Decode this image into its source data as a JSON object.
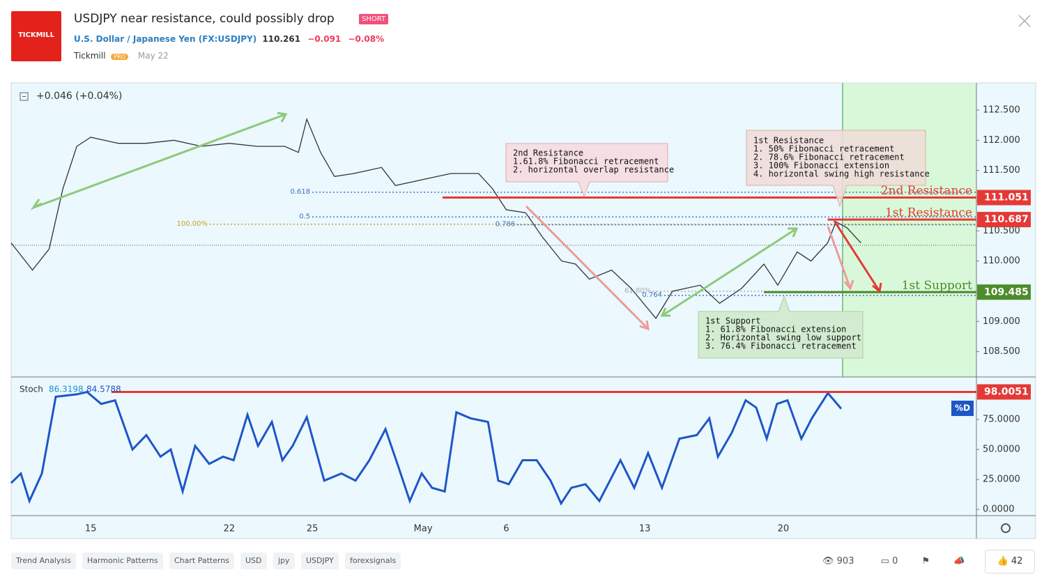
{
  "header": {
    "logo": "TICKMILL",
    "title": "USDJPY near resistance, could possibly drop",
    "badge": "SHORT",
    "symbol": "U.S. Dollar / Japanese Yen",
    "exchange": "(FX:USDJPY)",
    "price": 110.261,
    "change": "−0.091",
    "change_pct": "−0.08%",
    "author": "Tickmill",
    "author_badge": "PRO",
    "date": "May 22"
  },
  "chart_data": [
    {
      "type": "line",
      "legend_value": "+0.046 (+0.04%)",
      "color": "#333333",
      "x": [
        -2.87,
        -2.1,
        -1.5,
        -1,
        -0.5,
        0,
        1,
        2,
        3,
        4,
        5,
        6,
        7,
        7.5,
        7.8,
        8.3,
        8.8,
        9.5,
        10.5,
        11,
        12,
        13,
        14,
        14.5,
        15,
        15.7,
        16.3,
        17,
        17.5,
        18,
        18.8,
        19.5,
        20.4,
        21,
        22,
        22.7,
        23.5,
        24.3,
        24.8,
        25.5,
        26,
        26.6,
        26.9,
        27.3,
        27.8
      ],
      "series": [
        {
          "color": "#333333",
          "values": [
            110.3,
            109.85,
            110.2,
            111.2,
            111.9,
            112.05,
            111.95,
            111.95,
            112.0,
            111.9,
            111.95,
            111.9,
            111.9,
            111.8,
            112.35,
            111.8,
            111.4,
            111.45,
            111.55,
            111.25,
            111.35,
            111.45,
            111.45,
            111.2,
            110.85,
            110.8,
            110.4,
            110.0,
            109.95,
            109.7,
            109.85,
            109.55,
            109.05,
            109.5,
            109.6,
            109.3,
            109.55,
            109.95,
            109.6,
            110.15,
            110.0,
            110.3,
            110.65,
            110.55,
            110.3
          ]
        }
      ],
      "xlim": [
        -2.87,
        31.97
      ],
      "xticks": [
        {
          "value": 0,
          "label": "15"
        },
        {
          "value": 5,
          "label": "22"
        },
        {
          "value": 8,
          "label": "25"
        },
        {
          "value": 12,
          "label": "May"
        },
        {
          "value": 15,
          "label": "6"
        },
        {
          "value": 20,
          "label": "13"
        },
        {
          "value": 25,
          "label": "20"
        }
      ],
      "ylim": [
        108.08,
        112.95
      ],
      "yticks": [
        {
          "value": 108.5,
          "label": "108.500"
        },
        {
          "value": 109,
          "label": "109.000"
        },
        {
          "value": 109.5,
          "label": "109.500"
        },
        {
          "value": 110,
          "label": "110.000"
        },
        {
          "value": 110.5,
          "label": "110.500"
        },
        {
          "value": 111,
          "label": "111.000"
        },
        {
          "value": 111.5,
          "label": "111.500"
        },
        {
          "value": 112,
          "label": "112.000"
        },
        {
          "value": 112.5,
          "label": "112.500"
        }
      ],
      "levels": [
        {
          "name": "2nd Resistance",
          "value": 111.051,
          "label": "111.051",
          "color": "#e53935",
          "from_x": 12.7
        },
        {
          "name": "1st Resistance",
          "value": 110.687,
          "label": "110.687",
          "color": "#e53935",
          "from_x": 26.6
        },
        {
          "name": "1st Support",
          "value": 109.485,
          "label": "109.485",
          "color": "#4c8c2b",
          "from_x": 24.3
        }
      ],
      "fib": [
        {
          "label": "0.618",
          "value": 111.14,
          "color": "#3f6fbf",
          "from_x": 8
        },
        {
          "label": "0.5",
          "value": 110.73,
          "color": "#3f6fbf",
          "from_x": 8
        },
        {
          "label": "100.00%",
          "value": 110.61,
          "color": "#c9a227",
          "from_x": 4.3
        },
        {
          "label": "0.786",
          "value": 110.6,
          "color": "#3f6fbf",
          "from_x": 15.4
        },
        {
          "label": "61.80%",
          "value": 109.5,
          "color": "#aaaaaa",
          "from_x": 20.3
        },
        {
          "label": "0.764",
          "value": 109.43,
          "color": "#3f6fbf",
          "from_x": 20.7
        }
      ],
      "zone_from_x": 27.14
    },
    {
      "type": "line",
      "title": "Stoch",
      "legend_values": [
        "86.3198",
        "84.5788"
      ],
      "x": [
        -2.87,
        -2.52,
        -2.21,
        -1.76,
        -1.26,
        -0.5,
        -0.13,
        0.38,
        0.88,
        1.51,
        2.01,
        2.52,
        2.89,
        3.32,
        3.77,
        4.28,
        4.78,
        5.16,
        5.66,
        6.04,
        6.54,
        6.92,
        7.29,
        7.8,
        8.43,
        9.05,
        9.56,
        10.06,
        10.64,
        11.07,
        11.52,
        11.95,
        12.32,
        12.78,
        13.2,
        13.71,
        14.34,
        14.71,
        15.09,
        15.59,
        16.1,
        16.6,
        16.98,
        17.35,
        17.86,
        18.36,
        18.74,
        19.12,
        19.62,
        20.12,
        20.62,
        21.25,
        21.88,
        22.33,
        22.64,
        23.14,
        23.64,
        24.02,
        24.4,
        24.77,
        25.15,
        25.65,
        26.03,
        26.61,
        27.09
      ],
      "series": [
        {
          "name": "%D",
          "color": "#1e56c8",
          "values": [
            22,
            30,
            7,
            30,
            94,
            96,
            98,
            88,
            91,
            50,
            62,
            44,
            50,
            15,
            53,
            38,
            44,
            41,
            79,
            53,
            73,
            41,
            53,
            77,
            24,
            30,
            24,
            41,
            67,
            38,
            7,
            30,
            18,
            15,
            81,
            76,
            73,
            24,
            21,
            41,
            41,
            24,
            5,
            18,
            21,
            7,
            24,
            41,
            18,
            47,
            18,
            59,
            62,
            76,
            44,
            64,
            91,
            85,
            59,
            88,
            91,
            59,
            76,
            97,
            84
          ]
        }
      ],
      "xlim": [
        -2.87,
        31.97
      ],
      "ylim": [
        -5.2,
        110.5
      ],
      "yticks": [
        {
          "value": 0,
          "label": "0.0000"
        },
        {
          "value": 25,
          "label": "25.0000"
        },
        {
          "value": 50,
          "label": "50.0000"
        },
        {
          "value": 75,
          "label": "75.0000"
        }
      ],
      "levels": [
        {
          "value": 98.0051,
          "label": "98.0051",
          "color": "#e53935",
          "from_x": 0.75
        }
      ]
    }
  ],
  "callouts": [
    {
      "lines": [
        "2nd Resistance",
        "1.61.8% Fibonacci retracement",
        "2. horizontal overlap resistance"
      ]
    },
    {
      "lines": [
        "1st Resistance",
        "1. 50% Fibonacci retracement",
        "2. 78.6% Fibonacci retracement",
        "3. 100% Fibonacci extension",
        "4. horizontal swing high resistance"
      ]
    },
    {
      "lines": [
        "1st Support",
        "1. 61.8% Fibonacci extension",
        "2. Horizontal swing low support",
        "3. 76.4% Fibonacci retracement"
      ]
    }
  ],
  "tags": [
    "Trend Analysis",
    "Harmonic Patterns",
    "Chart Patterns",
    "USD",
    "jpy",
    "USDJPY",
    "forexsignals"
  ],
  "stats": {
    "views": 903,
    "comments": 0,
    "likes": 42
  }
}
